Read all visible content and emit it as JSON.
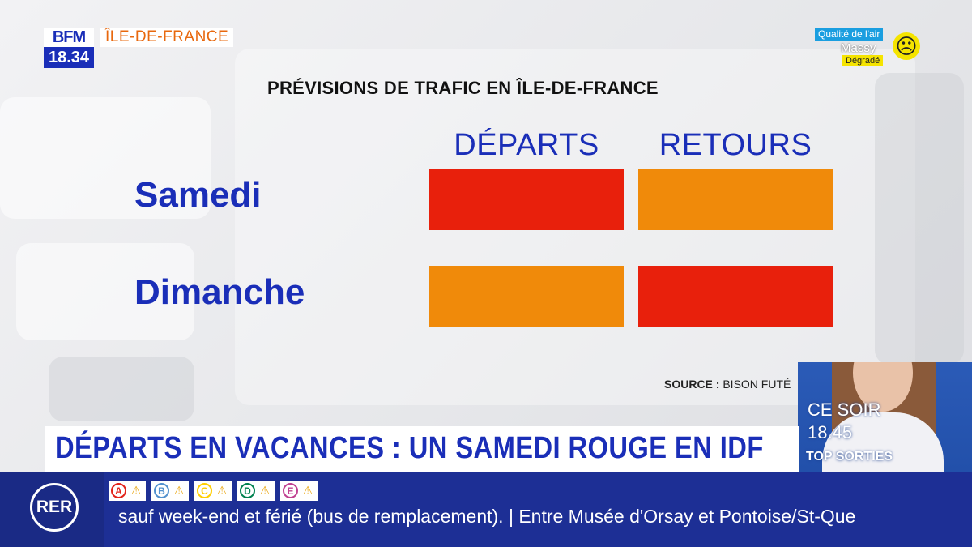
{
  "channel": {
    "logo_text": "BFM",
    "clock": "18.34",
    "region": "ÎLE-DE-FRANCE"
  },
  "air_quality": {
    "title": "Qualité de l'air",
    "city": "Massy",
    "status": "Dégradé",
    "face_icon": "sad-face-icon",
    "color": "#f5e400"
  },
  "panel": {
    "title": "PRÉVISIONS DE TRAFIC EN ÎLE-DE-FRANCE",
    "columns": [
      "DÉPARTS",
      "RETOURS"
    ],
    "rows": [
      {
        "label": "Samedi",
        "departs": "red",
        "retours": "orange"
      },
      {
        "label": "Dimanche",
        "departs": "orange",
        "retours": "red"
      }
    ],
    "level_colors": {
      "red": "#e8200c",
      "orange": "#f08a0a"
    },
    "source_label": "SOURCE :",
    "source_value": "BISON FUTÉ"
  },
  "presenter": {
    "line1": "CE SOIR",
    "line2": "18.45",
    "line3": "TOP SORTIES"
  },
  "headline": "DÉPARTS EN VACANCES : UN SAMEDI ROUGE EN IDF",
  "ticker": {
    "network": "RER",
    "lines": [
      {
        "letter": "A",
        "color": "#e2231a"
      },
      {
        "letter": "B",
        "color": "#5291ce"
      },
      {
        "letter": "C",
        "color": "#ffce00"
      },
      {
        "letter": "D",
        "color": "#00814f"
      },
      {
        "letter": "E",
        "color": "#c04191"
      }
    ],
    "warning_icon": "warning-icon",
    "text": "sauf week-end et férié (bus de remplacement). | Entre Musée d'Orsay et Pontoise/St-Que"
  }
}
